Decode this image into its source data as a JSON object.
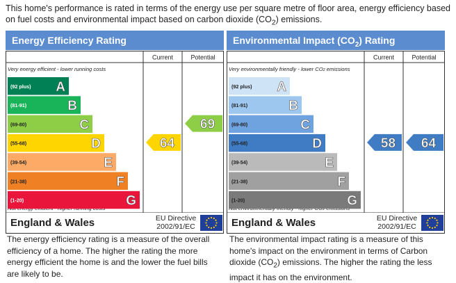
{
  "intro": "This home's performance is rated in terms of the energy use per square metre of floor area, energy efficiency based on fuel costs and environmental impact based on carbon dioxide (CO2) emissions.",
  "chart_data": [
    {
      "type": "bar",
      "title": "Energy Efficiency Rating",
      "columns": [
        "Current",
        "Potential"
      ],
      "top_note": "Very energy efficient - lower running costs",
      "bottom_note": "Not energy efficient - higher running costs",
      "bands": [
        {
          "range": "(92 plus)",
          "letter": "A",
          "color": "#008054"
        },
        {
          "range": "(81-91)",
          "letter": "B",
          "color": "#19b459"
        },
        {
          "range": "(69-80)",
          "letter": "C",
          "color": "#8dce46"
        },
        {
          "range": "(55-68)",
          "letter": "D",
          "color": "#ffd500"
        },
        {
          "range": "(39-54)",
          "letter": "E",
          "color": "#fcaa65"
        },
        {
          "range": "(21-38)",
          "letter": "F",
          "color": "#ef8023"
        },
        {
          "range": "(1-20)",
          "letter": "G",
          "color": "#e9153b"
        }
      ],
      "current": {
        "value": 64,
        "band": "D",
        "color": "#ffd500"
      },
      "potential": {
        "value": 69,
        "band": "C",
        "color": "#8dce46"
      }
    },
    {
      "type": "bar",
      "title": "Environmental Impact (CO2) Rating",
      "columns": [
        "Current",
        "Potential"
      ],
      "top_note": "Very environmentally friendly - lower CO2 emissions",
      "bottom_note": "Not environmentally friendly - higher CO2 emissions",
      "bands": [
        {
          "range": "(92 plus)",
          "letter": "A",
          "color": "#cfe3f6"
        },
        {
          "range": "(81-91)",
          "letter": "B",
          "color": "#9ec7ef"
        },
        {
          "range": "(69-80)",
          "letter": "C",
          "color": "#6fa3df"
        },
        {
          "range": "(55-68)",
          "letter": "D",
          "color": "#3f7cc4"
        },
        {
          "range": "(39-54)",
          "letter": "E",
          "color": "#bababa"
        },
        {
          "range": "(21-38)",
          "letter": "F",
          "color": "#a0a0a0"
        },
        {
          "range": "(1-20)",
          "letter": "G",
          "color": "#7a7a7a"
        }
      ],
      "current": {
        "value": 58,
        "band": "D",
        "color": "#3f7cc4"
      },
      "potential": {
        "value": 64,
        "band": "D",
        "color": "#3f7cc4"
      }
    }
  ],
  "footer": {
    "country": "England & Wales",
    "directive_line1": "EU Directive",
    "directive_line2": "2002/91/EC"
  },
  "descriptions": {
    "energy": "The energy efficiency rating is a measure of the overall efficiency of a home. The higher the rating the more energy efficient the home is and the lower the fuel bills are likely to be.",
    "environment": "The environmental impact rating is a measure of this home's impact on the environment in terms of Carbon dioxide (CO2) emissions. The higher the rating the less impact it has on the environment."
  }
}
